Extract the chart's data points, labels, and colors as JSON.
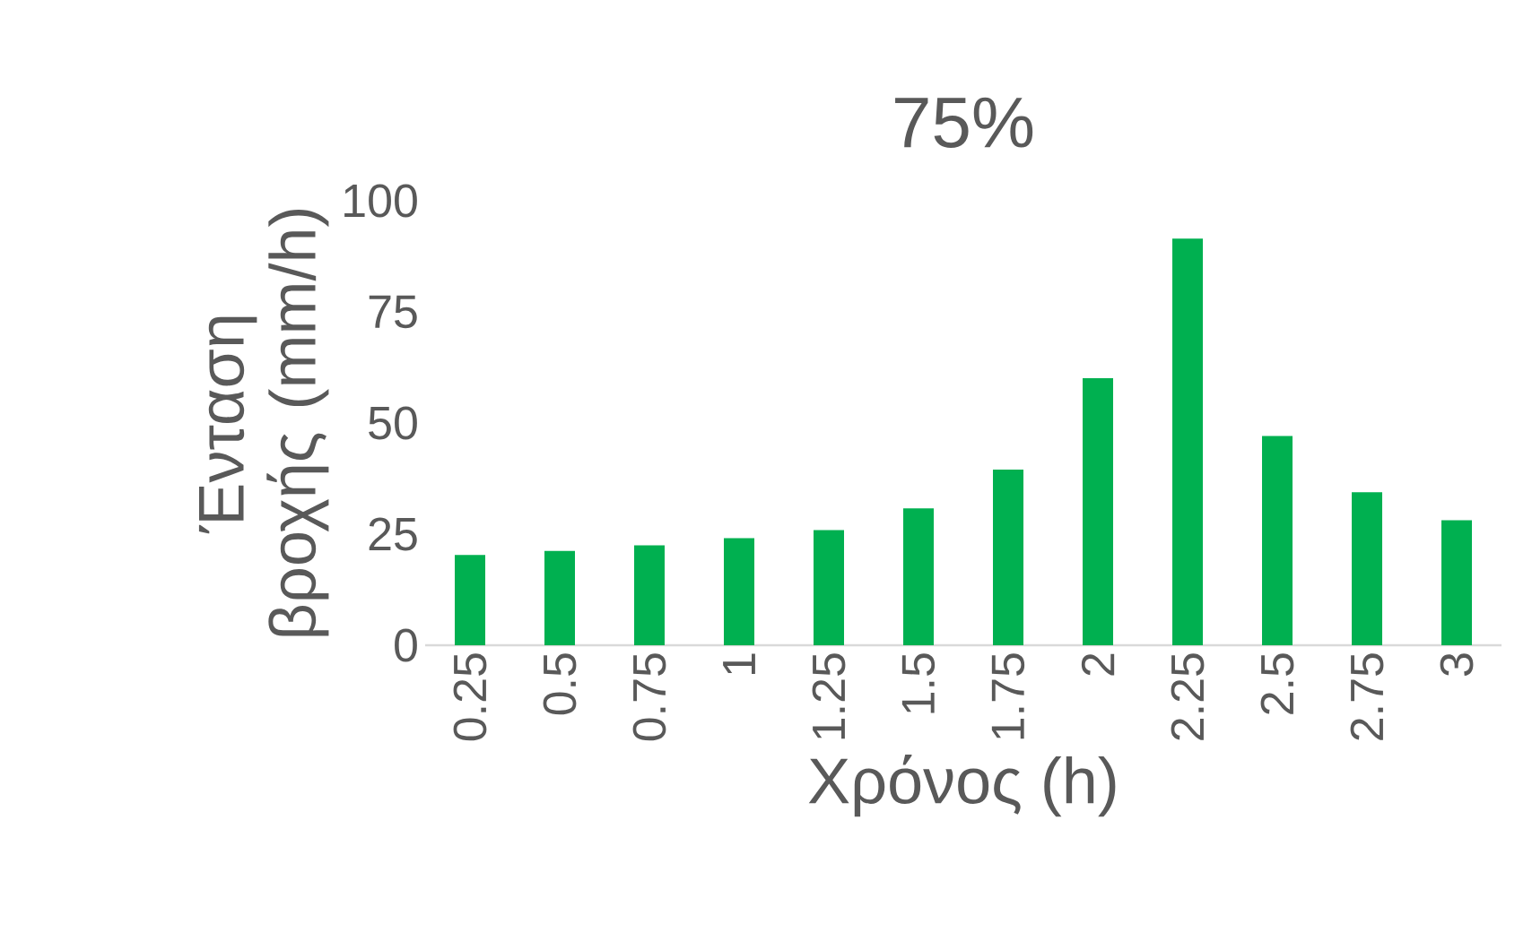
{
  "chart_data": {
    "type": "bar",
    "title": "75%",
    "xlabel": "Χρόνος (h)",
    "ylabel": "Ένταση βροχής (mm/h)",
    "categories": [
      "0.25",
      "0.5",
      "0.75",
      "1",
      "1.25",
      "1.5",
      "1.75",
      "2",
      "2.25",
      "2.5",
      "2.75",
      "3"
    ],
    "values": [
      20.3,
      21.2,
      22.5,
      24.1,
      25.9,
      30.8,
      39.5,
      60.1,
      91.5,
      47.1,
      34.4,
      28.1
    ],
    "color": "#00b050",
    "ylim": [
      0,
      100
    ],
    "yticks": [
      0,
      25,
      50,
      75,
      100
    ]
  }
}
